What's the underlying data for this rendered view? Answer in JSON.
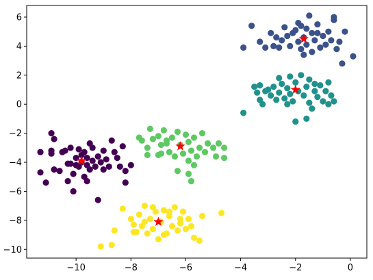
{
  "chart_data": {
    "type": "scatter",
    "title": "",
    "xlabel": "",
    "ylabel": "",
    "xlim": [
      -11.8,
      0.6
    ],
    "ylim": [
      -10.6,
      6.8
    ],
    "xticks": [
      -10,
      -8,
      -6,
      -4,
      -2,
      0
    ],
    "yticks": [
      -10,
      -8,
      -6,
      -4,
      -2,
      0,
      2,
      4,
      6
    ],
    "grid": false,
    "legend": "none",
    "series": [
      {
        "color": "#440154",
        "points": [
          [
            -11.3,
            -3.3
          ],
          [
            -11.3,
            -4.7
          ],
          [
            -11.1,
            -5.4
          ],
          [
            -10.9,
            -2.0
          ],
          [
            -10.9,
            -3.2
          ],
          [
            -10.9,
            -3.4
          ],
          [
            -10.8,
            -2.4
          ],
          [
            -10.8,
            -4.5
          ],
          [
            -10.6,
            -4.6
          ],
          [
            -10.5,
            -3.3
          ],
          [
            -10.4,
            -3.2
          ],
          [
            -10.3,
            -4.1
          ],
          [
            -10.3,
            -5.3
          ],
          [
            -10.2,
            -3.0
          ],
          [
            -10.2,
            -4.1
          ],
          [
            -10.1,
            -4.8
          ],
          [
            -10.1,
            -6.0
          ],
          [
            -10.0,
            -3.7
          ],
          [
            -10.0,
            -4.2
          ],
          [
            -9.9,
            -3.1
          ],
          [
            -9.9,
            -4.3
          ],
          [
            -9.8,
            -3.5
          ],
          [
            -9.8,
            -4.0
          ],
          [
            -9.7,
            -3.3
          ],
          [
            -9.7,
            -5.0
          ],
          [
            -9.6,
            -3.7
          ],
          [
            -9.6,
            -4.2
          ],
          [
            -9.5,
            -2.7
          ],
          [
            -9.5,
            -4.5
          ],
          [
            -9.4,
            -3.0
          ],
          [
            -9.4,
            -3.9
          ],
          [
            -9.3,
            -4.3
          ],
          [
            -9.2,
            -3.6
          ],
          [
            -9.2,
            -6.6
          ],
          [
            -9.1,
            -4.0
          ],
          [
            -9.0,
            -3.2
          ],
          [
            -9.0,
            -4.5
          ],
          [
            -8.9,
            -3.8
          ],
          [
            -8.8,
            -4.3
          ],
          [
            -8.7,
            -2.5
          ],
          [
            -8.6,
            -3.3
          ],
          [
            -8.5,
            -3.7
          ],
          [
            -8.4,
            -4.3
          ],
          [
            -8.3,
            -2.9
          ],
          [
            -8.2,
            -5.4
          ],
          [
            -8.2,
            -4.6
          ],
          [
            -8.0,
            -4.2
          ],
          [
            -9.6,
            -5.3
          ]
        ]
      },
      {
        "color": "#3b528b",
        "points": [
          [
            -3.9,
            3.9
          ],
          [
            -3.6,
            5.4
          ],
          [
            -3.3,
            4.3
          ],
          [
            -3.1,
            3.9
          ],
          [
            -2.9,
            4.9
          ],
          [
            -2.7,
            4.6
          ],
          [
            -2.6,
            3.9
          ],
          [
            -2.5,
            4.4
          ],
          [
            -2.4,
            5.3
          ],
          [
            -2.3,
            4.7
          ],
          [
            -2.2,
            4.0
          ],
          [
            -2.1,
            4.9
          ],
          [
            -2.0,
            5.1
          ],
          [
            -1.9,
            4.3
          ],
          [
            -1.9,
            5.6
          ],
          [
            -1.8,
            3.8
          ],
          [
            -1.7,
            4.6
          ],
          [
            -1.6,
            4.1
          ],
          [
            -1.6,
            5.2
          ],
          [
            -1.5,
            6.1
          ],
          [
            -1.4,
            4.9
          ],
          [
            -1.4,
            3.6
          ],
          [
            -1.3,
            4.4
          ],
          [
            -1.2,
            5.5
          ],
          [
            -1.1,
            3.9
          ],
          [
            -1.0,
            4.7
          ],
          [
            -0.9,
            4.1
          ],
          [
            -0.8,
            5.0
          ],
          [
            -0.7,
            4.4
          ],
          [
            -0.6,
            5.8
          ],
          [
            -0.5,
            3.8
          ],
          [
            -0.4,
            4.3
          ],
          [
            -0.3,
            2.8
          ],
          [
            -0.2,
            5.0
          ],
          [
            0.1,
            3.3
          ],
          [
            -1.7,
            3.4
          ],
          [
            -2.8,
            4.0
          ],
          [
            -1.2,
            4.9
          ],
          [
            -0.6,
            6.0
          ],
          [
            -1.8,
            5.4
          ]
        ]
      },
      {
        "color": "#21918c",
        "points": [
          [
            -3.9,
            -0.6
          ],
          [
            -3.5,
            1.2
          ],
          [
            -3.4,
            0.8
          ],
          [
            -3.3,
            0.3
          ],
          [
            -3.2,
            0.0
          ],
          [
            -3.0,
            1.0
          ],
          [
            -2.9,
            0.6
          ],
          [
            -2.8,
            1.2
          ],
          [
            -2.7,
            0.3
          ],
          [
            -2.6,
            0.8
          ],
          [
            -2.5,
            1.4
          ],
          [
            -2.4,
            0.4
          ],
          [
            -2.3,
            1.1
          ],
          [
            -2.2,
            0.7
          ],
          [
            -2.2,
            1.9
          ],
          [
            -2.1,
            0.2
          ],
          [
            -2.0,
            1.5
          ],
          [
            -1.9,
            0.9
          ],
          [
            -1.8,
            2.0
          ],
          [
            -1.7,
            0.6
          ],
          [
            -1.6,
            1.2
          ],
          [
            -1.5,
            0.1
          ],
          [
            -1.5,
            1.7
          ],
          [
            -1.4,
            -0.3
          ],
          [
            -1.3,
            0.9
          ],
          [
            -1.2,
            0.5
          ],
          [
            -1.1,
            1.3
          ],
          [
            -1.0,
            0.2
          ],
          [
            -0.9,
            0.9
          ],
          [
            -0.8,
            1.5
          ],
          [
            -0.7,
            0.6
          ],
          [
            -0.6,
            0.2
          ],
          [
            -2.0,
            -1.2
          ],
          [
            -1.6,
            -1.0
          ],
          [
            -3.1,
            0.9
          ],
          [
            -2.6,
            1.8
          ],
          [
            -1.3,
            1.4
          ],
          [
            -0.8,
            0.0
          ],
          [
            -2.3,
            0.0
          ],
          [
            -3.3,
            1.3
          ]
        ]
      },
      {
        "color": "#5ec962",
        "points": [
          [
            -7.7,
            -2.3
          ],
          [
            -7.6,
            -2.5
          ],
          [
            -7.4,
            -3.0
          ],
          [
            -7.3,
            -1.7
          ],
          [
            -7.2,
            -2.4
          ],
          [
            -7.0,
            -2.2
          ],
          [
            -6.9,
            -2.8
          ],
          [
            -6.8,
            -1.8
          ],
          [
            -6.7,
            -2.7
          ],
          [
            -6.6,
            -3.3
          ],
          [
            -6.5,
            -2.3
          ],
          [
            -6.4,
            -3.6
          ],
          [
            -6.3,
            -1.9
          ],
          [
            -6.2,
            -2.8
          ],
          [
            -6.1,
            -3.4
          ],
          [
            -6.0,
            -2.1
          ],
          [
            -5.9,
            -3.9
          ],
          [
            -5.9,
            -2.6
          ],
          [
            -5.8,
            -3.2
          ],
          [
            -5.7,
            -4.2
          ],
          [
            -5.7,
            -2.3
          ],
          [
            -5.6,
            -3.6
          ],
          [
            -5.5,
            -3.0
          ],
          [
            -5.4,
            -2.0
          ],
          [
            -5.3,
            -3.3
          ],
          [
            -5.2,
            -2.7
          ],
          [
            -5.0,
            -3.0
          ],
          [
            -4.9,
            -3.6
          ],
          [
            -4.8,
            -2.7
          ],
          [
            -4.6,
            -3.0
          ],
          [
            -4.6,
            -3.7
          ],
          [
            -7.4,
            -3.5
          ],
          [
            -6.9,
            -3.4
          ],
          [
            -6.3,
            -4.6
          ],
          [
            -5.8,
            -5.3
          ],
          [
            -5.9,
            -4.8
          ],
          [
            -6.7,
            -2.5
          ],
          [
            -7.0,
            -3.5
          ]
        ]
      },
      {
        "color": "#fde725",
        "points": [
          [
            -9.1,
            -9.8
          ],
          [
            -8.7,
            -9.7
          ],
          [
            -8.6,
            -8.7
          ],
          [
            -8.3,
            -7.2
          ],
          [
            -8.0,
            -7.9
          ],
          [
            -7.9,
            -8.3
          ],
          [
            -7.8,
            -8.8
          ],
          [
            -7.7,
            -7.6
          ],
          [
            -7.6,
            -8.4
          ],
          [
            -7.5,
            -7.0
          ],
          [
            -7.4,
            -8.9
          ],
          [
            -7.3,
            -7.9
          ],
          [
            -7.2,
            -8.6
          ],
          [
            -7.1,
            -7.4
          ],
          [
            -7.0,
            -9.3
          ],
          [
            -6.9,
            -8.1
          ],
          [
            -6.8,
            -7.3
          ],
          [
            -6.7,
            -8.9
          ],
          [
            -6.6,
            -7.7
          ],
          [
            -6.5,
            -8.4
          ],
          [
            -6.4,
            -7.1
          ],
          [
            -6.3,
            -8.7
          ],
          [
            -6.2,
            -7.9
          ],
          [
            -6.1,
            -7.4
          ],
          [
            -6.0,
            -8.6
          ],
          [
            -5.9,
            -7.9
          ],
          [
            -5.8,
            -8.4
          ],
          [
            -5.7,
            -9.2
          ],
          [
            -5.5,
            -9.4
          ],
          [
            -5.4,
            -7.7
          ],
          [
            -4.7,
            -7.5
          ],
          [
            -7.9,
            -8.8
          ],
          [
            -7.2,
            -7.1
          ],
          [
            -6.8,
            -9.0
          ],
          [
            -6.6,
            -7.4
          ],
          [
            -7.5,
            -8.1
          ],
          [
            -6.2,
            -8.2
          ]
        ]
      }
    ],
    "centers": {
      "color": "#ff0000",
      "marker": "star",
      "points": [
        [
          -9.8,
          -3.9
        ],
        [
          -1.7,
          4.5
        ],
        [
          -2.0,
          1.0
        ],
        [
          -6.2,
          -2.9
        ],
        [
          -7.0,
          -8.1
        ]
      ]
    }
  }
}
